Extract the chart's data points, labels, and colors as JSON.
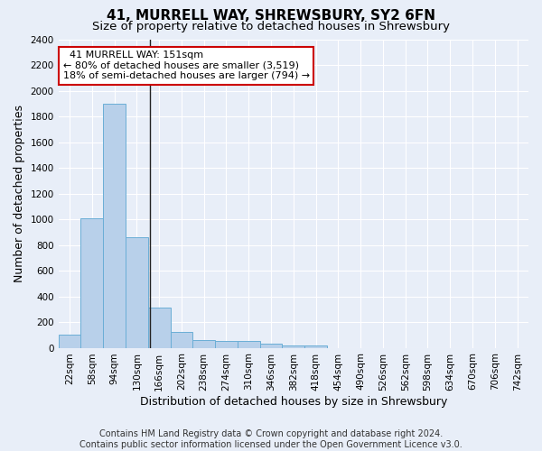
{
  "title": "41, MURRELL WAY, SHREWSBURY, SY2 6FN",
  "subtitle": "Size of property relative to detached houses in Shrewsbury",
  "xlabel": "Distribution of detached houses by size in Shrewsbury",
  "ylabel": "Number of detached properties",
  "footer_line1": "Contains HM Land Registry data © Crown copyright and database right 2024.",
  "footer_line2": "Contains public sector information licensed under the Open Government Licence v3.0.",
  "bin_labels": [
    "22sqm",
    "58sqm",
    "94sqm",
    "130sqm",
    "166sqm",
    "202sqm",
    "238sqm",
    "274sqm",
    "310sqm",
    "346sqm",
    "382sqm",
    "418sqm",
    "454sqm",
    "490sqm",
    "526sqm",
    "562sqm",
    "598sqm",
    "634sqm",
    "670sqm",
    "706sqm",
    "742sqm"
  ],
  "bar_values": [
    100,
    1010,
    1900,
    860,
    315,
    120,
    60,
    55,
    50,
    30,
    20,
    20,
    0,
    0,
    0,
    0,
    0,
    0,
    0,
    0,
    0
  ],
  "bar_color": "#b8d0ea",
  "bar_edge_color": "#6aaed6",
  "vline_color": "#222222",
  "ylim": [
    0,
    2400
  ],
  "yticks": [
    0,
    200,
    400,
    600,
    800,
    1000,
    1200,
    1400,
    1600,
    1800,
    2000,
    2200,
    2400
  ],
  "annotation_line1": "  41 MURRELL WAY: 151sqm",
  "annotation_line2": "← 80% of detached houses are smaller (3,519)",
  "annotation_line3": "18% of semi-detached houses are larger (794) →",
  "annotation_box_color": "#ffffff",
  "annotation_box_edge": "#cc0000",
  "bg_color": "#e8eef8",
  "grid_color": "#ffffff",
  "title_fontsize": 11,
  "subtitle_fontsize": 9.5,
  "axis_label_fontsize": 9,
  "tick_fontsize": 7.5,
  "footer_fontsize": 7,
  "annot_fontsize": 8
}
